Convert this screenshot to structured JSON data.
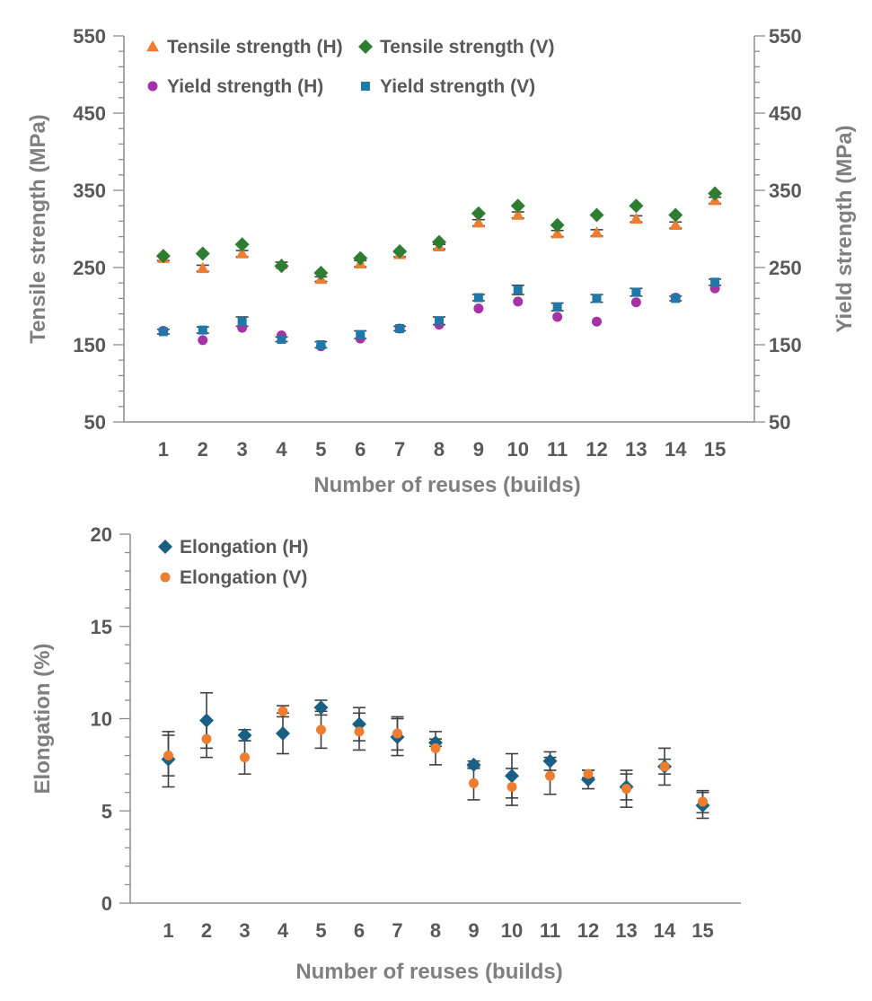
{
  "chart_data": [
    {
      "type": "scatter",
      "title": "",
      "xlabel": "Number of reuses (builds)",
      "ylabel": "Tensile strength (MPa)",
      "ylabel_right": "Yield strength (MPa)",
      "x": [
        1,
        2,
        3,
        4,
        5,
        6,
        7,
        8,
        9,
        10,
        11,
        12,
        13,
        14,
        15
      ],
      "x_ticks": [
        "1",
        "2",
        "3",
        "4",
        "5",
        "6",
        "7",
        "8",
        "9",
        "10",
        "11",
        "12",
        "13",
        "14",
        "15"
      ],
      "xlim": [
        0,
        16
      ],
      "ylim": [
        50,
        550
      ],
      "y_ticks": [
        "50",
        "150",
        "250",
        "350",
        "450",
        "550"
      ],
      "y_ticks_right": [
        "50",
        "150",
        "250",
        "350",
        "450",
        "550"
      ],
      "y_minor_step": 20,
      "grid": false,
      "legend_placement": "top-left",
      "series": [
        {
          "name": "Tensile strength (H)",
          "marker": "triangle",
          "color": "#ed7d31",
          "values": [
            262,
            249,
            268,
            254,
            235,
            255,
            267,
            277,
            308,
            318,
            294,
            295,
            313,
            305,
            337
          ],
          "errors": [
            3,
            4,
            4,
            3,
            3,
            4,
            3,
            3,
            4,
            4,
            4,
            4,
            4,
            4,
            4
          ]
        },
        {
          "name": "Tensile strength (V)",
          "marker": "diamond",
          "color": "#2e7d32",
          "values": [
            265,
            268,
            280,
            252,
            243,
            262,
            271,
            283,
            320,
            330,
            305,
            318,
            330,
            318,
            346
          ],
          "errors": [
            0,
            0,
            0,
            0,
            0,
            0,
            0,
            0,
            0,
            0,
            0,
            0,
            0,
            0,
            0
          ]
        },
        {
          "name": "Yield strength (H)",
          "marker": "circle",
          "color": "#a633a6",
          "values": [
            168,
            156,
            172,
            162,
            148,
            158,
            171,
            176,
            197,
            206,
            186,
            180,
            205,
            211,
            223
          ],
          "errors": [
            0,
            0,
            0,
            0,
            0,
            0,
            0,
            0,
            0,
            0,
            0,
            0,
            0,
            0,
            0
          ]
        },
        {
          "name": "Yield strength (V)",
          "marker": "square",
          "color": "#1f78a8",
          "values": [
            167,
            169,
            180,
            157,
            150,
            163,
            171,
            181,
            211,
            221,
            199,
            210,
            218,
            210,
            231
          ],
          "errors": [
            3,
            4,
            6,
            3,
            4,
            5,
            3,
            5,
            4,
            6,
            5,
            5,
            5,
            3,
            4
          ]
        }
      ]
    },
    {
      "type": "scatter",
      "title": "",
      "xlabel": "Number of reuses (builds)",
      "ylabel": "Elongation (%)",
      "x": [
        1,
        2,
        3,
        4,
        5,
        6,
        7,
        8,
        9,
        10,
        11,
        12,
        13,
        14,
        15
      ],
      "x_ticks": [
        "1",
        "2",
        "3",
        "4",
        "5",
        "6",
        "7",
        "8",
        "9",
        "10",
        "11",
        "12",
        "13",
        "14",
        "15"
      ],
      "xlim": [
        0,
        16
      ],
      "ylim": [
        0,
        20
      ],
      "y_ticks": [
        "0",
        "5",
        "10",
        "15",
        "20"
      ],
      "y_minor_step": 1,
      "grid": false,
      "legend_placement": "top-left",
      "series": [
        {
          "name": "Elongation (H)",
          "marker": "diamond",
          "color": "#1a5f84",
          "values": [
            7.8,
            9.9,
            9.1,
            9.2,
            10.6,
            9.7,
            9.0,
            8.7,
            7.5,
            6.9,
            7.7,
            6.7,
            6.3,
            7.4,
            5.3
          ],
          "errors": [
            1.5,
            1.5,
            0.3,
            1.1,
            0.4,
            0.9,
            1.0,
            0.2,
            0.2,
            1.2,
            0.5,
            0.5,
            0.7,
            0.4,
            0.7
          ]
        },
        {
          "name": "Elongation (V)",
          "marker": "circle",
          "color": "#ed7d31",
          "values": [
            8.0,
            8.9,
            7.9,
            10.4,
            9.4,
            9.3,
            9.2,
            8.4,
            6.5,
            6.3,
            6.9,
            7.0,
            6.2,
            7.4,
            5.5
          ],
          "errors": [
            1.1,
            1.0,
            0.9,
            0.3,
            1.0,
            1.0,
            0.9,
            0.9,
            0.9,
            1.0,
            1.0,
            0.2,
            1.0,
            1.0,
            0.6
          ]
        }
      ]
    }
  ]
}
